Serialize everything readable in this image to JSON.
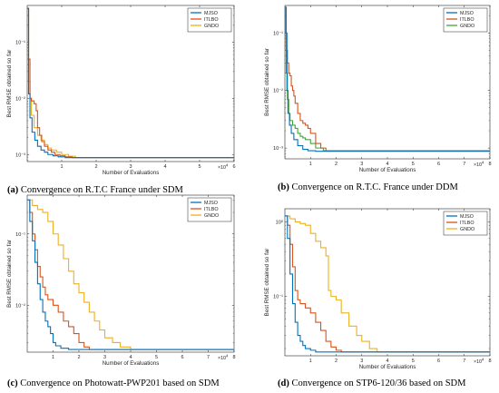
{
  "chart_data": [
    {
      "type": "line",
      "panel": "a",
      "caption_letter": "(a)",
      "caption_text": " Convergence on R.T.C France under SDM",
      "xlabel": "Number of Evaluations",
      "ylabel": "Best RMSE obtained so far",
      "x_exponent": "×10",
      "x_exponent_power": "4",
      "xscale": "linear",
      "yscale": "log",
      "xlim": [
        0,
        6
      ],
      "ylim": [
        0.00075,
        0.45
      ],
      "xticks": [
        1,
        2,
        3,
        4,
        5,
        6
      ],
      "xtick_labels": [
        "1",
        "2",
        "3",
        "4",
        "5",
        "6"
      ],
      "yticks": [
        0.001,
        0.01,
        0.1
      ],
      "ytick_labels": [
        "10⁻³",
        "10⁻²",
        "10⁻¹"
      ],
      "legend_position": "top-right",
      "series": [
        {
          "name": "MJSO",
          "color": "#0072BD",
          "x": [
            0,
            0.04,
            0.08,
            0.14,
            0.22,
            0.3,
            0.4,
            0.5,
            0.6,
            0.75,
            0.9,
            1.1,
            6
          ],
          "y": [
            0.4,
            0.012,
            0.0045,
            0.0025,
            0.0018,
            0.0014,
            0.0012,
            0.0011,
            0.001,
            0.00095,
            0.00091,
            0.00088,
            0.00088
          ]
        },
        {
          "name": "ITLBO",
          "color": "#D95319",
          "x": [
            0,
            0.04,
            0.08,
            0.12,
            0.2,
            0.26,
            0.3,
            0.36,
            0.42,
            0.5,
            0.6,
            0.7,
            0.8,
            0.95,
            1.1,
            1.3,
            6
          ],
          "y": [
            0.4,
            0.05,
            0.01,
            0.009,
            0.008,
            0.006,
            0.003,
            0.0022,
            0.0017,
            0.0014,
            0.0012,
            0.0011,
            0.001,
            0.00095,
            0.00091,
            0.00088,
            0.00088
          ]
        },
        {
          "name": "GNDO",
          "color": "#EDB120",
          "x": [
            0,
            0.04,
            0.08,
            0.12,
            0.2,
            0.3,
            0.4,
            0.5,
            0.6,
            0.7,
            0.85,
            1.0,
            1.2,
            1.4,
            6
          ],
          "y": [
            0.4,
            0.02,
            0.01,
            0.005,
            0.003,
            0.0022,
            0.0018,
            0.0015,
            0.0013,
            0.0012,
            0.0011,
            0.001,
            0.00093,
            0.00088,
            0.00088
          ]
        }
      ]
    },
    {
      "type": "line",
      "panel": "b",
      "caption_letter": "(b)",
      "caption_text": " Convergence on R.T.C. France under DDM",
      "xlabel": "Number of Evaluations",
      "ylabel": "Best RMSE obtained so far",
      "x_exponent": "×10",
      "x_exponent_power": "4",
      "xscale": "linear",
      "yscale": "log",
      "xlim": [
        0,
        8
      ],
      "ylim": [
        0.00065,
        0.3
      ],
      "xticks": [
        1,
        2,
        3,
        4,
        5,
        6,
        7,
        8
      ],
      "xtick_labels": [
        "1",
        "2",
        "3",
        "4",
        "5",
        "6",
        "7",
        "8"
      ],
      "yticks": [
        0.001,
        0.01,
        0.1
      ],
      "ytick_labels": [
        "10⁻³",
        "10⁻²",
        "10⁻¹"
      ],
      "legend_position": "top-right",
      "series": [
        {
          "name": "MJSO",
          "color": "#0072BD",
          "x": [
            0,
            0.04,
            0.08,
            0.12,
            0.18,
            0.25,
            0.35,
            0.5,
            0.7,
            0.9,
            1.2,
            8
          ],
          "y": [
            0.28,
            0.1,
            0.01,
            0.004,
            0.0025,
            0.0018,
            0.0014,
            0.0011,
            0.00095,
            0.0009,
            0.00088,
            0.00088
          ]
        },
        {
          "name": "ITLBO",
          "color": "#D95319",
          "x": [
            0,
            0.05,
            0.1,
            0.15,
            0.2,
            0.25,
            0.3,
            0.35,
            0.4,
            0.5,
            0.6,
            0.7,
            0.8,
            0.9,
            1.0,
            1.2,
            1.4,
            1.6,
            8
          ],
          "y": [
            0.28,
            0.05,
            0.03,
            0.02,
            0.018,
            0.012,
            0.01,
            0.008,
            0.006,
            0.004,
            0.003,
            0.0027,
            0.0025,
            0.0022,
            0.0018,
            0.0012,
            0.001,
            0.0009,
            0.0009
          ]
        },
        {
          "name": "GNDO",
          "color": "#3CA83C",
          "x": [
            0,
            0.05,
            0.1,
            0.15,
            0.2,
            0.3,
            0.4,
            0.5,
            0.6,
            0.7,
            0.8,
            1.0,
            1.2,
            1.5,
            8
          ],
          "y": [
            0.28,
            0.02,
            0.007,
            0.004,
            0.003,
            0.0025,
            0.0022,
            0.0018,
            0.0016,
            0.0015,
            0.0014,
            0.0012,
            0.001,
            0.0009,
            0.0009
          ]
        }
      ]
    },
    {
      "type": "line",
      "panel": "c",
      "caption_letter": "(c)",
      "caption_text": " Convergence on Photowatt-PWP201 based on SDM",
      "xlabel": "Number of Evaluations",
      "ylabel": "Best RMSE obtained so far",
      "x_exponent": "×10",
      "x_exponent_power": "4",
      "xscale": "linear",
      "yscale": "log",
      "xlim": [
        0,
        8
      ],
      "ylim": [
        0.0022,
        0.35
      ],
      "xticks": [
        1,
        2,
        3,
        4,
        5,
        6,
        7,
        8
      ],
      "xtick_labels": [
        "1",
        "2",
        "3",
        "4",
        "5",
        "6",
        "7",
        "8"
      ],
      "yticks": [
        0.01,
        0.1
      ],
      "ytick_labels": [
        "10⁻²",
        "10⁻¹"
      ],
      "legend_position": "top-right",
      "series": [
        {
          "name": "MJSO",
          "color": "#0072BD",
          "x": [
            0,
            0.1,
            0.2,
            0.3,
            0.4,
            0.5,
            0.6,
            0.7,
            0.8,
            0.9,
            1.0,
            1.1,
            1.3,
            1.6,
            8
          ],
          "y": [
            0.3,
            0.15,
            0.08,
            0.04,
            0.02,
            0.012,
            0.008,
            0.006,
            0.005,
            0.004,
            0.003,
            0.0027,
            0.0025,
            0.0024,
            0.0024
          ]
        },
        {
          "name": "ITLBO",
          "color": "#D95319",
          "x": [
            0,
            0.1,
            0.2,
            0.3,
            0.4,
            0.5,
            0.6,
            0.7,
            0.8,
            1.0,
            1.2,
            1.4,
            1.6,
            1.8,
            2.0,
            2.2,
            2.4,
            8
          ],
          "y": [
            0.3,
            0.2,
            0.1,
            0.06,
            0.035,
            0.025,
            0.018,
            0.014,
            0.012,
            0.01,
            0.008,
            0.006,
            0.005,
            0.004,
            0.003,
            0.0026,
            0.0024,
            0.0024
          ]
        },
        {
          "name": "GNDO",
          "color": "#EDB120",
          "x": [
            0,
            0.2,
            0.4,
            0.6,
            0.8,
            1.0,
            1.2,
            1.4,
            1.6,
            1.8,
            2.0,
            2.2,
            2.4,
            2.6,
            2.8,
            3.0,
            3.3,
            3.6,
            4.0,
            8
          ],
          "y": [
            0.3,
            0.25,
            0.22,
            0.2,
            0.15,
            0.1,
            0.07,
            0.045,
            0.03,
            0.02,
            0.015,
            0.011,
            0.008,
            0.006,
            0.0045,
            0.0035,
            0.003,
            0.0026,
            0.0024,
            0.0024
          ]
        }
      ]
    },
    {
      "type": "line",
      "panel": "d",
      "caption_letter": "(d)",
      "caption_text": " Convergence on STP6-120/36 based on SDM",
      "xlabel": "Number of Evaluations",
      "ylabel": "Best RMSE obtained so far",
      "x_exponent": "×10",
      "x_exponent_power": "4",
      "xscale": "linear",
      "yscale": "log",
      "xlim": [
        0,
        8
      ],
      "ylim": [
        0.016,
        1.5
      ],
      "xticks": [
        1,
        2,
        3,
        4,
        5,
        6,
        7,
        8
      ],
      "xtick_labels": [
        "1",
        "2",
        "3",
        "4",
        "5",
        "6",
        "7",
        "8"
      ],
      "yticks": [
        0.1,
        1
      ],
      "ytick_labels": [
        "10⁻¹",
        "10⁰"
      ],
      "legend_position": "top-right",
      "series": [
        {
          "name": "MJSO",
          "color": "#0072BD",
          "x": [
            0,
            0.1,
            0.2,
            0.3,
            0.4,
            0.5,
            0.6,
            0.7,
            0.8,
            1.0,
            1.2,
            8
          ],
          "y": [
            1.2,
            0.6,
            0.2,
            0.08,
            0.045,
            0.03,
            0.025,
            0.022,
            0.02,
            0.019,
            0.018,
            0.018
          ]
        },
        {
          "name": "ITLBO",
          "color": "#D95319",
          "x": [
            0,
            0.1,
            0.2,
            0.3,
            0.4,
            0.5,
            0.6,
            0.8,
            1.0,
            1.2,
            1.4,
            1.6,
            1.8,
            2.0,
            2.2,
            8
          ],
          "y": [
            1.2,
            0.9,
            0.5,
            0.25,
            0.12,
            0.09,
            0.08,
            0.07,
            0.06,
            0.045,
            0.035,
            0.025,
            0.021,
            0.019,
            0.018,
            0.018
          ]
        },
        {
          "name": "GNDO",
          "color": "#EDB120",
          "x": [
            0,
            0.2,
            0.4,
            0.6,
            0.8,
            1.0,
            1.2,
            1.4,
            1.6,
            1.7,
            1.8,
            2.0,
            2.2,
            2.5,
            2.8,
            3.0,
            3.3,
            3.6,
            8
          ],
          "y": [
            1.2,
            1.1,
            1.0,
            0.95,
            0.9,
            0.7,
            0.55,
            0.45,
            0.35,
            0.12,
            0.1,
            0.09,
            0.06,
            0.04,
            0.03,
            0.025,
            0.02,
            0.018,
            0.018
          ]
        }
      ]
    }
  ]
}
